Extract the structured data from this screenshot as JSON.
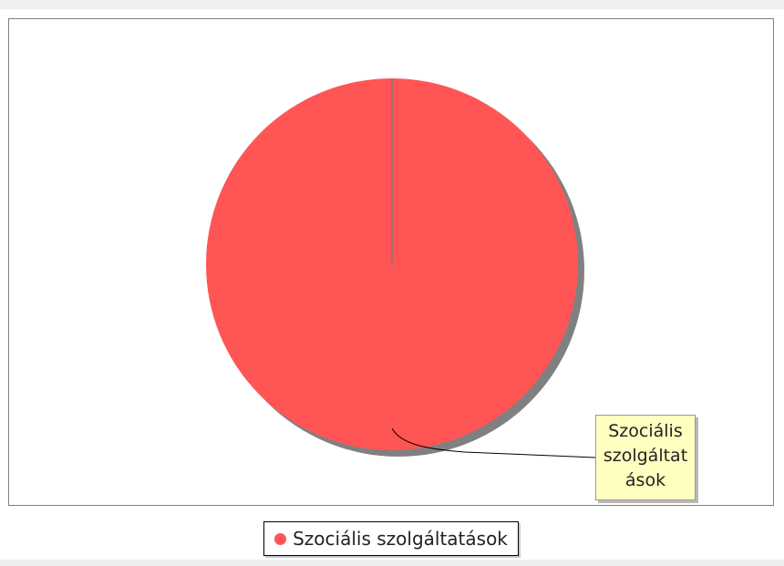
{
  "chart_data": {
    "type": "pie",
    "categories": [
      "Szociális szolgáltatások"
    ],
    "values": [
      100
    ],
    "colors": [
      "#ff5555"
    ],
    "shadow_color": "#808080",
    "slice_labels": [
      {
        "text": "Szociális szolgáltatások",
        "lines": [
          "Szociális",
          "szolgáltat",
          "ások"
        ]
      }
    ],
    "legend": {
      "position": "bottom",
      "entries": [
        "Szociális szolgáltatások"
      ]
    }
  }
}
